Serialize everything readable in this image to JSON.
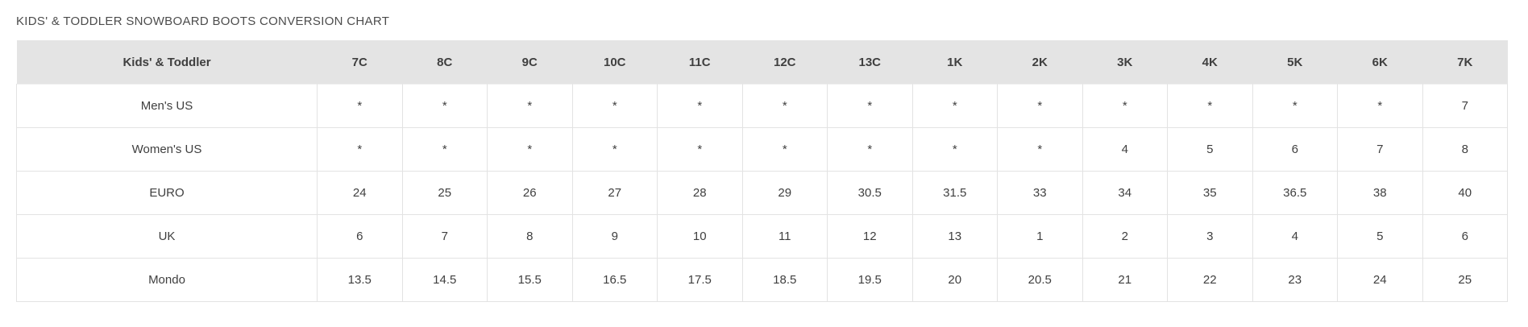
{
  "title": "KIDS' & TODDLER SNOWBOARD BOOTS CONVERSION CHART",
  "colors": {
    "header_bg": "#e4e4e4",
    "cell_border": "#e3e3e3",
    "text": "#3f3f3f",
    "title_text": "#4c4c4c"
  },
  "chart_data": {
    "type": "table",
    "title": "KIDS' & TODDLER SNOWBOARD BOOTS CONVERSION CHART",
    "header": [
      "Kids' & Toddler",
      "7C",
      "8C",
      "9C",
      "10C",
      "11C",
      "12C",
      "13C",
      "1K",
      "2K",
      "3K",
      "4K",
      "5K",
      "6K",
      "7K"
    ],
    "rows": [
      {
        "label": "Men's US",
        "values": [
          "*",
          "*",
          "*",
          "*",
          "*",
          "*",
          "*",
          "*",
          "*",
          "*",
          "*",
          "*",
          "*",
          "7"
        ]
      },
      {
        "label": "Women's US",
        "values": [
          "*",
          "*",
          "*",
          "*",
          "*",
          "*",
          "*",
          "*",
          "*",
          "4",
          "5",
          "6",
          "7",
          "8"
        ]
      },
      {
        "label": "EURO",
        "values": [
          "24",
          "25",
          "26",
          "27",
          "28",
          "29",
          "30.5",
          "31.5",
          "33",
          "34",
          "35",
          "36.5",
          "38",
          "40"
        ]
      },
      {
        "label": "UK",
        "values": [
          "6",
          "7",
          "8",
          "9",
          "10",
          "11",
          "12",
          "13",
          "1",
          "2",
          "3",
          "4",
          "5",
          "6"
        ]
      },
      {
        "label": "Mondo",
        "values": [
          "13.5",
          "14.5",
          "15.5",
          "16.5",
          "17.5",
          "18.5",
          "19.5",
          "20",
          "20.5",
          "21",
          "22",
          "23",
          "24",
          "25"
        ]
      }
    ]
  }
}
